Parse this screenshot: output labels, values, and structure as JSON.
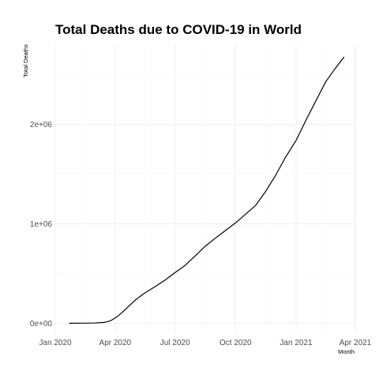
{
  "chart_data": {
    "type": "line",
    "title": "Total Deaths due to COVID-19 in World",
    "xlabel": "Month",
    "ylabel": "Total Deaths",
    "x_ticks": [
      "Jan 2020",
      "Apr 2020",
      "Jul 2020",
      "Oct 2020",
      "Jan 2021",
      "Apr 2021"
    ],
    "y_ticks": [
      "0e+00",
      "1e+06",
      "2e+06"
    ],
    "y_tick_values": [
      0,
      1000000,
      2000000
    ],
    "xlim": [
      "2020-01-01",
      "2021-04-01"
    ],
    "ylim": [
      -100000,
      2800000
    ],
    "grid": true,
    "line_color": "#000000",
    "series": [
      {
        "x": [
          "2020-01-22",
          "2020-02-10",
          "2020-03-01",
          "2020-03-15",
          "2020-03-25",
          "2020-04-05",
          "2020-04-15",
          "2020-05-01",
          "2020-05-15",
          "2020-06-01",
          "2020-06-15",
          "2020-07-01",
          "2020-07-15",
          "2020-08-01",
          "2020-08-15",
          "2020-09-01",
          "2020-09-15",
          "2020-10-01",
          "2020-10-15",
          "2020-11-01",
          "2020-11-15",
          "2020-12-01",
          "2020-12-15",
          "2021-01-01",
          "2021-01-15",
          "2021-02-01",
          "2021-02-15",
          "2021-03-01",
          "2021-03-15"
        ],
        "y": [
          500,
          1000,
          3000,
          8000,
          25000,
          70000,
          130000,
          230000,
          300000,
          370000,
          430000,
          510000,
          575000,
          680000,
          770000,
          860000,
          930000,
          1010000,
          1090000,
          1190000,
          1320000,
          1490000,
          1660000,
          1840000,
          2030000,
          2250000,
          2430000,
          2560000,
          2680000
        ]
      }
    ]
  }
}
